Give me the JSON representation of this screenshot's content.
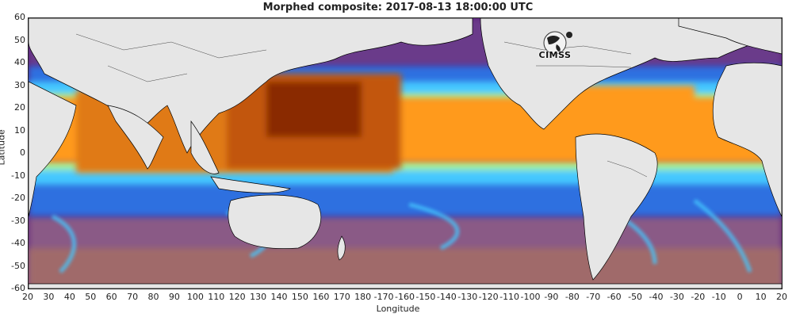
{
  "title": "Morphed composite: 2017-08-13 18:00:00 UTC",
  "axes": {
    "xlabel": "Longitude",
    "ylabel": "Latitude",
    "x_ticks": [
      "20",
      "30",
      "40",
      "50",
      "60",
      "70",
      "80",
      "90",
      "100",
      "110",
      "120",
      "130",
      "140",
      "150",
      "160",
      "170",
      "180",
      "-170",
      "-160",
      "-150",
      "-140",
      "-130",
      "-120",
      "-110",
      "-100",
      "-90",
      "-80",
      "-70",
      "-60",
      "-50",
      "-40",
      "-30",
      "-20",
      "-10",
      "0",
      "10",
      "20"
    ],
    "y_ticks": [
      "60",
      "50",
      "40",
      "30",
      "20",
      "10",
      "0",
      "-10",
      "-20",
      "-30",
      "-40",
      "-50",
      "-60"
    ]
  },
  "logo": {
    "text": "CIMSS",
    "icon": "cimss-logo-icon"
  },
  "colors": {
    "land": "#e6e6e6",
    "dry": "#5b1e7a",
    "low": "#8a4aa0",
    "mid_low": "#2f6fe0",
    "mid": "#45c8ff",
    "mid_high": "#9ff0a0",
    "high": "#ff9a1f",
    "very_high": "#b8460a",
    "extreme": "#8a2a05"
  }
}
